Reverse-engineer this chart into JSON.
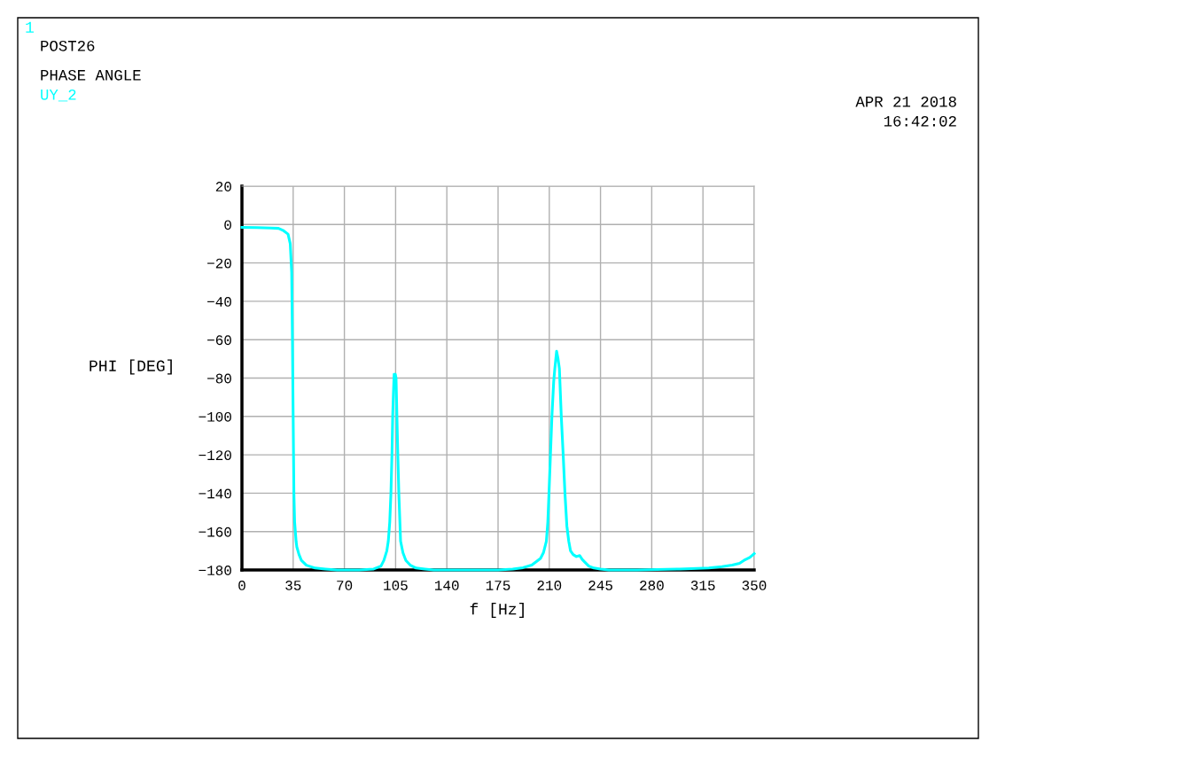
{
  "chart_data": {
    "type": "line",
    "title": "PHASE ANGLE",
    "xlabel": "f [Hz]",
    "ylabel": "PHI [DEG]",
    "annotations": [
      "1",
      "POST26",
      "APR 21 2018",
      "16:42:02"
    ],
    "series": [
      {
        "name": "UY_2",
        "color": "#00ffff",
        "x": [
          0,
          10,
          20,
          25,
          28,
          31.5,
          33,
          34,
          34.5,
          35,
          35.5,
          36,
          37,
          37.5,
          39,
          40.6,
          44,
          50,
          57,
          65,
          80,
          90,
          95,
          97,
          99,
          100,
          101,
          101.8,
          102.5,
          103,
          103.5,
          104,
          104.8,
          105.3,
          105.9,
          106.5,
          107.2,
          108.4,
          110,
          112,
          115,
          119,
          125,
          131,
          150,
          175,
          185,
          192,
          198,
          204,
          206,
          208,
          209,
          209.8,
          210.8,
          211.8,
          213,
          213.8,
          215,
          216,
          216.9,
          218.2,
          219.5,
          220.7,
          222,
          223.3,
          224.5,
          226.3,
          228.5,
          230.8,
          232.5,
          234.4,
          237,
          240.5,
          245,
          250.6,
          270,
          299,
          319,
          328,
          335,
          340,
          343,
          347,
          350
        ],
        "values": [
          -1.5,
          -1.6,
          -1.8,
          -2,
          -3,
          -5,
          -10,
          -25,
          -60,
          -100,
          -140,
          -155,
          -165,
          -168,
          -172,
          -175,
          -177.5,
          -179,
          -179.5,
          -180,
          -180,
          -179.5,
          -178,
          -175,
          -170,
          -165,
          -155,
          -140,
          -120,
          -100,
          -88,
          -78,
          -78,
          -80,
          -100,
          -120,
          -140,
          -165,
          -171,
          -175,
          -177.5,
          -179,
          -179.5,
          -180,
          -180,
          -180,
          -179.5,
          -178.8,
          -177.5,
          -174,
          -171,
          -165,
          -155,
          -140,
          -120,
          -100,
          -82,
          -75,
          -66,
          -70,
          -75,
          -100,
          -120,
          -140,
          -157,
          -165,
          -170,
          -172,
          -173,
          -172.5,
          -174.5,
          -176,
          -178,
          -179,
          -179.5,
          -180,
          -180,
          -179.5,
          -179,
          -178.3,
          -177.5,
          -176.5,
          -175,
          -173.5,
          -171.5
        ]
      }
    ],
    "xlim": [
      0,
      350
    ],
    "xticks": [
      0,
      35,
      70,
      105,
      140,
      175,
      210,
      245,
      280,
      315,
      350
    ],
    "ylim": [
      -180,
      20
    ],
    "yticks": [
      -180,
      -160,
      -140,
      -120,
      -100,
      -80,
      -60,
      -40,
      -20,
      0,
      20
    ],
    "grid": true,
    "legend": false
  }
}
